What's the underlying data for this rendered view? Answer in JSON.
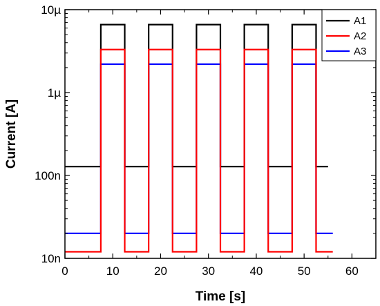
{
  "chart_data": {
    "type": "line",
    "xlabel": "Time [s]",
    "ylabel": "Current [A]",
    "xlim": [
      0,
      65
    ],
    "ylim": [
      1e-08,
      1e-05
    ],
    "yscale": "log",
    "xticks": [
      0,
      10,
      20,
      30,
      40,
      50,
      60
    ],
    "xtick_labels": [
      "0",
      "10",
      "20",
      "30",
      "40",
      "50",
      "60"
    ],
    "yticks": [
      1e-08,
      1e-07,
      1e-06,
      1e-05
    ],
    "ytick_labels": [
      "10n",
      "100n",
      "1µ",
      "10µ"
    ],
    "legend_position": "top-right",
    "grid": false,
    "pulses": [
      [
        7.5,
        12.5
      ],
      [
        17.5,
        22.5
      ],
      [
        27.5,
        32.5
      ],
      [
        37.5,
        42.5
      ],
      [
        47.5,
        52.5
      ]
    ],
    "series": [
      {
        "name": "A1",
        "color": "#000000",
        "x_start": 0,
        "x_end": 55,
        "off_value": 1.28e-07,
        "on_value": 6.6e-06
      },
      {
        "name": "A2",
        "color": "#ff0000",
        "x_start": 0,
        "x_end": 56,
        "off_value": 1.2e-08,
        "on_value": 3.3e-06
      },
      {
        "name": "A3",
        "color": "#0000ff",
        "x_start": 0,
        "x_end": 56,
        "off_value": 2e-08,
        "on_value": 2.2e-06
      }
    ]
  }
}
